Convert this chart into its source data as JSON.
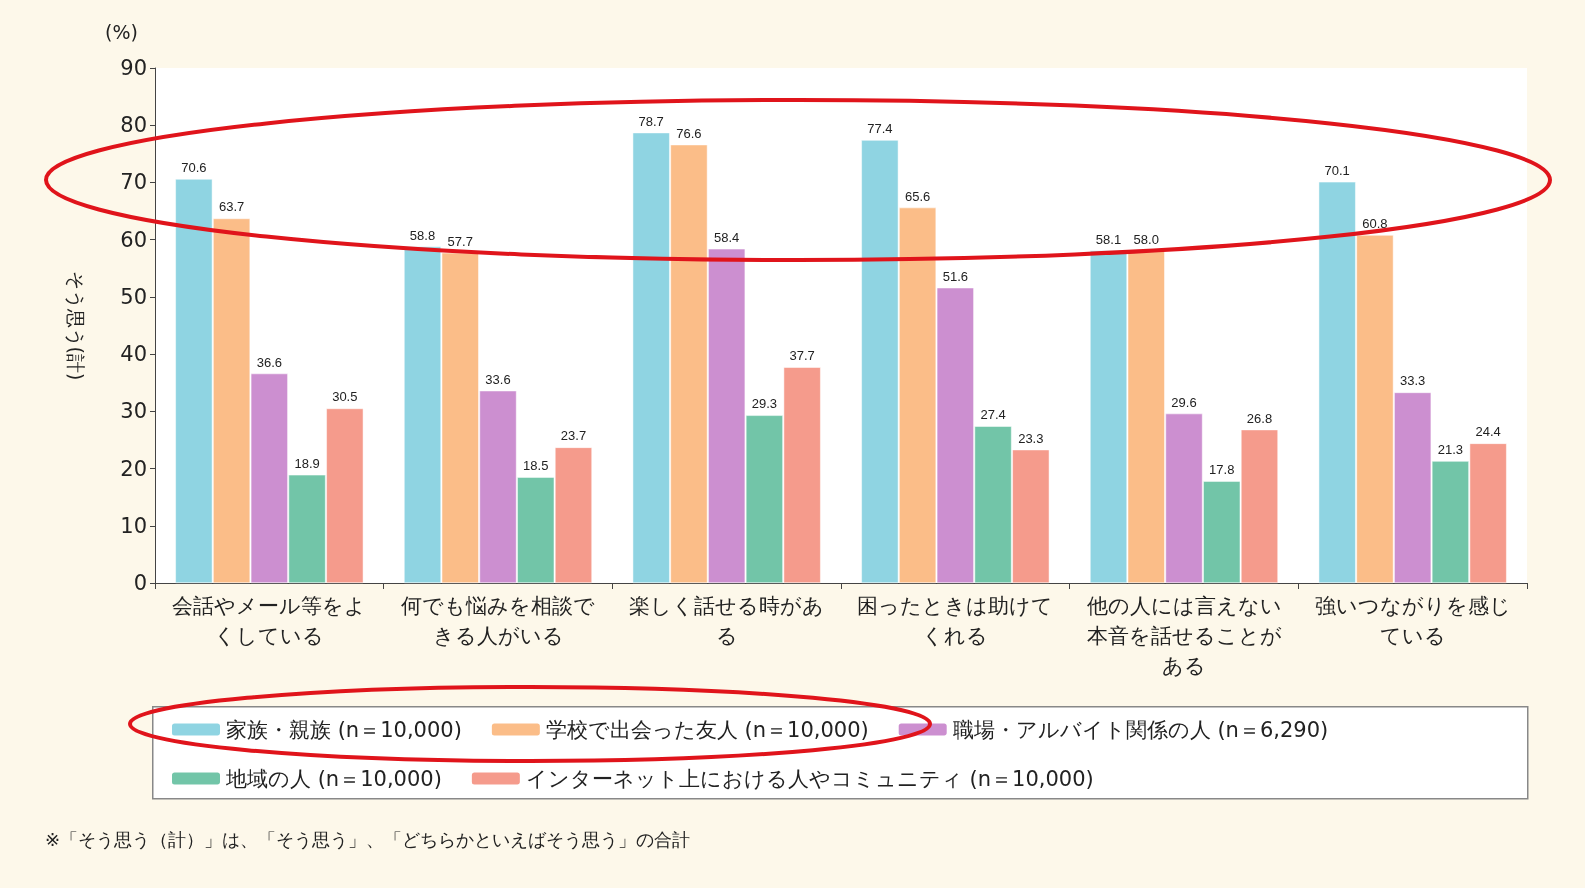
{
  "chart_data": {
    "type": "bar",
    "ylabel": "そう思う(計)",
    "categories": [
      "会話やメール等をよくしている",
      "何でも悩みを相談できる人がいる",
      "楽しく話せる時がある",
      "困ったときは助けてくれる",
      "他の人には言えない本音を話せることがある",
      "強いつながりを感じている"
    ],
    "series": [
      {
        "name": "家族・親族 (n＝10,000)",
        "color": "#8fd4e2",
        "values": [
          70.6,
          58.8,
          78.7,
          77.4,
          58.1,
          70.1
        ]
      },
      {
        "name": "学校で出会った友人 (n＝10,000)",
        "color": "#fbbd88",
        "values": [
          63.7,
          57.7,
          76.6,
          65.6,
          58.0,
          60.8
        ],
        "value_labels": [
          "63.7",
          "57.7",
          "76.6",
          "65.6",
          "58.0",
          "60.8"
        ]
      },
      {
        "name": "職場・アルバイト関係の人 (n＝6,290)",
        "color": "#cc8fd0",
        "values": [
          36.6,
          33.6,
          58.4,
          51.6,
          29.6,
          33.3
        ]
      },
      {
        "name": "地域の人 (n＝10,000)",
        "color": "#72c5a8",
        "values": [
          18.9,
          18.5,
          29.3,
          27.4,
          17.8,
          21.3
        ]
      },
      {
        "name": "インターネット上における人やコミュニティ (n＝10,000)",
        "color": "#f59b8c",
        "values": [
          30.5,
          23.7,
          37.7,
          23.3,
          26.8,
          24.4
        ]
      }
    ],
    "ylim": [
      0,
      90
    ],
    "yticks": [
      0,
      10,
      20,
      30,
      40,
      50,
      60,
      70,
      80,
      90
    ],
    "grid": false,
    "legend": "bottom",
    "data_labels": true,
    "annotations": [
      "(%)",
      "※「そう思う（計）」は、「そう思う」、「どちらかといえばそう思う」の合計"
    ]
  }
}
